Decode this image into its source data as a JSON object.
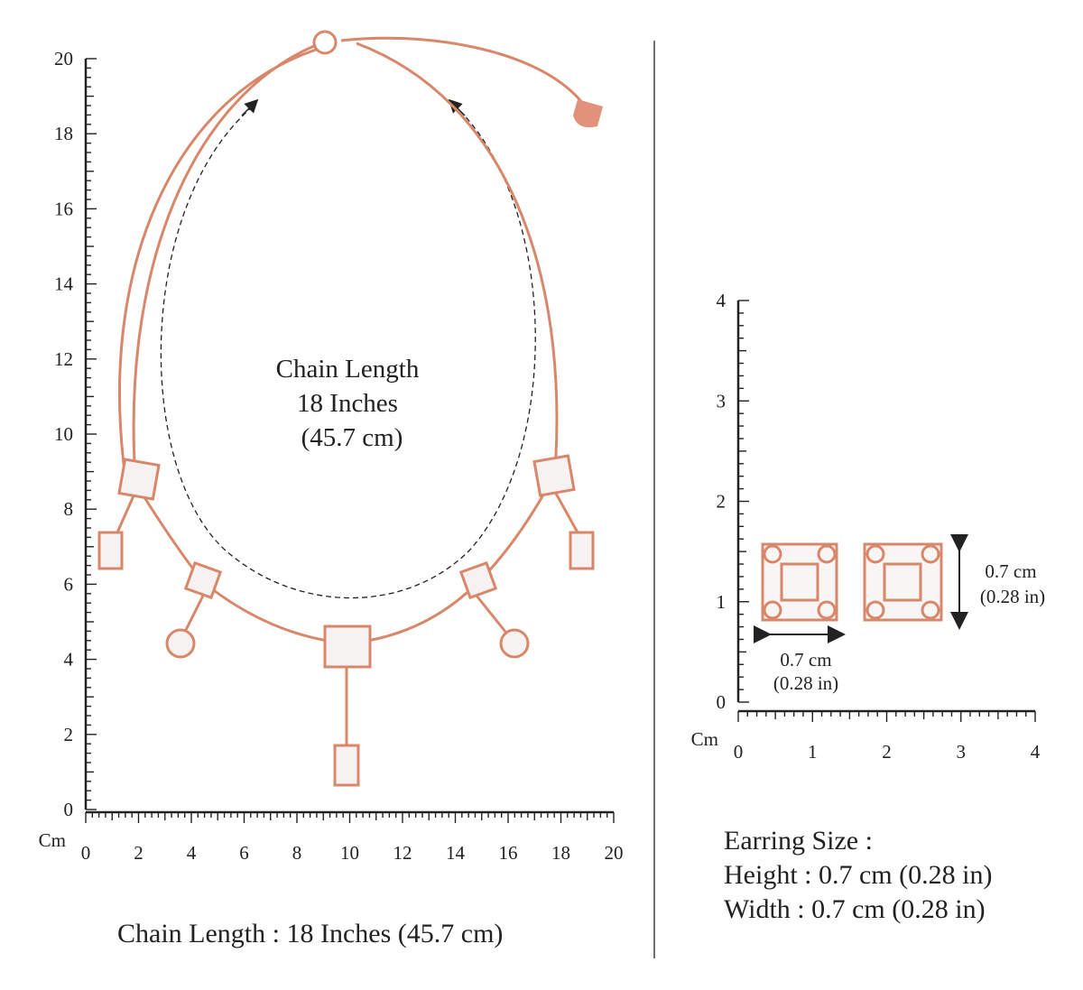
{
  "necklace": {
    "ruler": {
      "unit": "Cm",
      "y_labels": [
        0,
        2,
        4,
        6,
        8,
        10,
        12,
        14,
        16,
        18,
        20
      ],
      "x_labels": [
        0,
        2,
        4,
        6,
        8,
        10,
        12,
        14,
        16,
        18,
        20
      ]
    },
    "annotation": [
      "Chain Length",
      "18 Inches",
      "(45.7 cm)"
    ],
    "caption": "Chain Length : 18 Inches (45.7 cm)"
  },
  "earring": {
    "ruler": {
      "unit": "Cm",
      "y_labels": [
        0,
        1,
        2,
        3,
        4
      ],
      "x_labels": [
        0,
        1,
        2,
        3,
        4
      ]
    },
    "width_label": [
      "0.7 cm",
      "(0.28 in)"
    ],
    "height_label": [
      "0.7 cm",
      "(0.28 in)"
    ],
    "caption": [
      "Earring Size :",
      "Height : 0.7 cm (0.28 in)",
      "Width : 0.7 cm (0.28 in)"
    ]
  }
}
